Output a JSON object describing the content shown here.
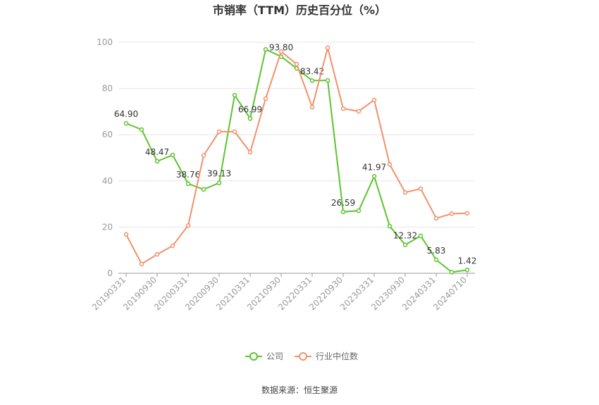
{
  "chart_data": {
    "type": "line",
    "title": "市销率（TTM）历史百分位（%）",
    "categories": [
      "20190331",
      null,
      "20190930",
      null,
      "20200331",
      null,
      "20200930",
      null,
      "20210331",
      null,
      "20210930",
      null,
      "20220331",
      null,
      "20220930",
      null,
      "20230331",
      null,
      "20230930",
      null,
      "20240331",
      null,
      "20240710"
    ],
    "series": [
      {
        "name": "公司",
        "color": "#5cc42e",
        "values": [
          64.9,
          62.2,
          48.47,
          51.2,
          38.76,
          36.3,
          39.13,
          77.1,
          66.99,
          96.9,
          93.8,
          88.7,
          83.42,
          83.5,
          26.59,
          27.1,
          41.97,
          20.4,
          12.32,
          16.2,
          5.83,
          0.5,
          1.42
        ],
        "value_labels": [
          "64.90",
          null,
          "48.47",
          null,
          "38.76",
          null,
          "39.13",
          null,
          "66.99",
          null,
          "93.80",
          null,
          "83.42",
          null,
          "26.59",
          null,
          "41.97",
          null,
          "12.32",
          null,
          "5.83",
          null,
          "1.42"
        ]
      },
      {
        "name": "行业中位数",
        "color": "#f0926a",
        "values": [
          16.8,
          4.0,
          8.2,
          11.9,
          20.7,
          51.0,
          61.3,
          61.3,
          52.4,
          75.6,
          96.0,
          90.5,
          71.9,
          97.6,
          71.3,
          70.1,
          75.0,
          47.1,
          35.0,
          36.6,
          23.8,
          25.8,
          26.0
        ]
      }
    ],
    "ylim": [
      0,
      100
    ],
    "yticks": [
      0,
      20,
      40,
      60,
      80,
      100
    ],
    "grid": true,
    "legend": "bottom",
    "source": "数据来源：恒生聚源"
  }
}
